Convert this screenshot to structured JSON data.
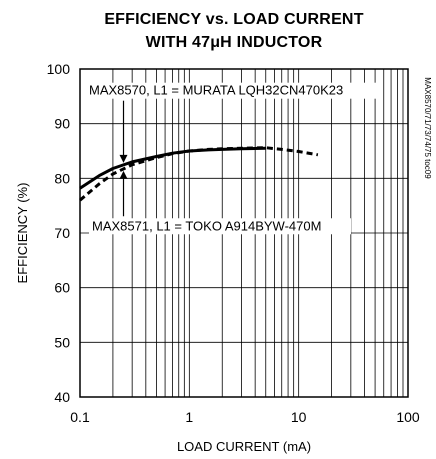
{
  "chart_data": {
    "type": "line",
    "title_lines": [
      "EFFICIENCY vs. LOAD CURRENT",
      "WITH 47μH INDUCTOR"
    ],
    "xlabel": "LOAD CURRENT (mA)",
    "ylabel": "EFFICIENCY (%)",
    "x_scale": "log",
    "xlim": [
      0.1,
      100
    ],
    "ylim": [
      40,
      100
    ],
    "x_ticks": [
      0.1,
      1,
      10,
      100
    ],
    "x_tick_labels": [
      "0.1",
      "1",
      "10",
      "100"
    ],
    "y_ticks": [
      40,
      50,
      60,
      70,
      80,
      90,
      100
    ],
    "y_tick_labels": [
      "40",
      "50",
      "60",
      "70",
      "80",
      "90",
      "100"
    ],
    "grid": true,
    "side_note": "MAX8570/71/73/74/75 toc09",
    "series": [
      {
        "name": "MAX8570, L1 = MURATA LQH32CN470K23",
        "style": "solid",
        "x": [
          0.1,
          0.15,
          0.2,
          0.3,
          0.5,
          0.7,
          1,
          1.5,
          2,
          3,
          5
        ],
        "y": [
          78.2,
          80.5,
          81.8,
          83.0,
          84.0,
          84.6,
          85.0,
          85.2,
          85.3,
          85.4,
          85.5
        ]
      },
      {
        "name": "MAX8571, L1 = TOKO A914BYW-470M",
        "style": "dashed",
        "x": [
          0.1,
          0.15,
          0.2,
          0.3,
          0.5,
          0.7,
          1,
          1.5,
          2,
          3,
          5,
          7,
          10,
          15
        ],
        "y": [
          76.0,
          79.0,
          80.8,
          82.5,
          83.8,
          84.5,
          85.0,
          85.3,
          85.4,
          85.5,
          85.6,
          85.3,
          84.9,
          84.3
        ]
      }
    ],
    "annotations": [
      {
        "text": "MAX8570, L1 = MURATA LQH32CN470K23",
        "series": 0
      },
      {
        "text": "MAX8571, L1 = TOKO A914BYW-470M",
        "series": 1
      }
    ]
  }
}
